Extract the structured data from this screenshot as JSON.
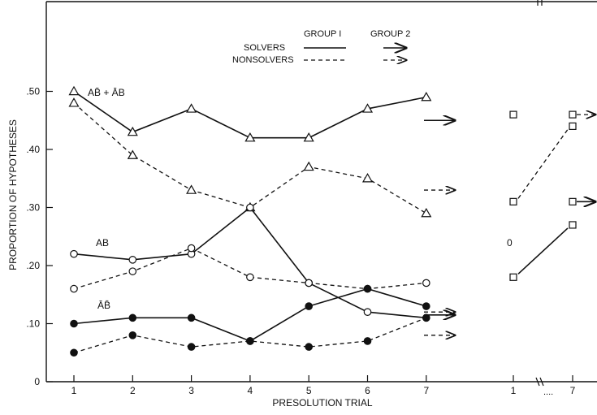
{
  "chart_data": {
    "type": "line",
    "xlabel": "PRESOLUTION TRIAL",
    "ylabel": "PROPORTION OF HYPOTHESES",
    "ylim": [
      0,
      0.55
    ],
    "yticks": [
      0,
      0.1,
      0.2,
      0.3,
      0.4,
      0.5
    ],
    "ytick_labels": [
      "0",
      ".10",
      ".20",
      ".30",
      ".40",
      ".50"
    ],
    "x": [
      1,
      2,
      3,
      4,
      5,
      6,
      7
    ],
    "xtick_labels": [
      "1",
      "2",
      "3",
      "4",
      "5",
      "6",
      "7"
    ],
    "group2_xtick_labels": [
      "1",
      "7"
    ],
    "group2_gap_mark": "....",
    "legend": {
      "header_group1": "GROUP I",
      "header_group2": "GROUP 2",
      "row_solvers": "SOLVERS",
      "row_nonsolvers": "NONSOLVERS"
    },
    "hypothesis_labels": {
      "ab_bar_sum": "AB̄ + ĀB",
      "ab": "AB",
      "ab_bar_bar": "ĀB̄"
    },
    "series": [
      {
        "name": "AB̄ + ĀB",
        "group": "GROUP I",
        "role": "SOLVERS",
        "marker": "triangle",
        "line": "solid",
        "values": [
          0.5,
          0.43,
          0.47,
          0.42,
          0.42,
          0.47,
          0.49
        ]
      },
      {
        "name": "AB̄ + ĀB",
        "group": "GROUP I",
        "role": "NONSOLVERS",
        "marker": "triangle",
        "line": "dashed",
        "values": [
          0.48,
          0.39,
          0.33,
          0.3,
          0.37,
          0.35,
          0.29
        ]
      },
      {
        "name": "AB",
        "group": "GROUP I",
        "role": "SOLVERS",
        "marker": "open-circle",
        "line": "solid",
        "values": [
          0.22,
          0.21,
          0.22,
          0.3,
          0.17,
          0.12,
          0.11
        ]
      },
      {
        "name": "AB",
        "group": "GROUP I",
        "role": "NONSOLVERS",
        "marker": "open-circle",
        "line": "dashed",
        "values": [
          0.16,
          0.19,
          0.23,
          0.18,
          0.17,
          0.16,
          0.17
        ]
      },
      {
        "name": "ĀB̄",
        "group": "GROUP I",
        "role": "SOLVERS",
        "marker": "filled-circle",
        "line": "solid",
        "values": [
          0.1,
          0.11,
          0.11,
          0.07,
          0.13,
          0.16,
          0.13
        ]
      },
      {
        "name": "ĀB̄",
        "group": "GROUP I",
        "role": "NONSOLVERS",
        "marker": "filled-circle",
        "line": "dashed",
        "values": [
          0.05,
          0.08,
          0.06,
          0.07,
          0.06,
          0.07,
          0.11
        ]
      }
    ],
    "group2_arrows": [
      {
        "name": "AB̄ + ĀB",
        "role": "SOLVERS",
        "value": 0.45,
        "line": "solid"
      },
      {
        "name": "AB̄ + ĀB",
        "role": "NONSOLVERS",
        "value": 0.33,
        "line": "dashed"
      },
      {
        "name": "AB",
        "role": "SOLVERS",
        "value": 0.115,
        "line": "solid"
      },
      {
        "name": "AB",
        "role": "NONSOLVERS",
        "value": 0.12,
        "line": "dashed"
      },
      {
        "name": "ĀB̄",
        "role": "NONSOLVERS",
        "value": 0.08,
        "line": "dashed"
      }
    ],
    "group2_panel": {
      "square_series": [
        {
          "role": "SOLVERS",
          "line": "solid",
          "x": [
            1,
            7
          ],
          "values": [
            0.18,
            0.27
          ]
        },
        {
          "role": "SOLVERS",
          "line": "solid",
          "x": [
            1,
            7
          ],
          "values": [
            0.31,
            0.31
          ]
        },
        {
          "role": "NONSOLVERS",
          "line": "dashed",
          "x": [
            1,
            7
          ],
          "values": [
            0.31,
            0.44
          ]
        },
        {
          "role": "NONSOLVERS",
          "line": "dashed",
          "x": [
            1,
            7
          ],
          "values": [
            0.46,
            0.46
          ]
        }
      ],
      "stray_label": "0"
    }
  }
}
